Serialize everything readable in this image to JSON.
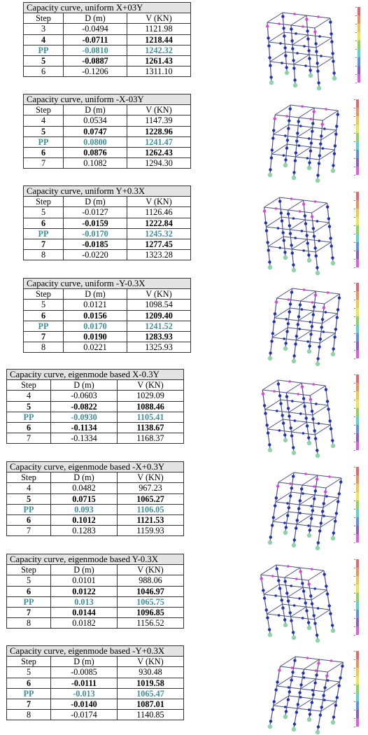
{
  "columns": {
    "step": "Step",
    "d": "D (m)",
    "v": "V (KN)"
  },
  "colors": {
    "pp": "#3e8f9a",
    "title_bg": "#e4e4e4",
    "frame": "#4a4e8c",
    "joint_blue": "#1b2fb8",
    "joint_magenta": "#e040e0",
    "support": "#8fd4a8"
  },
  "scale_colors": [
    "#e8656b",
    "#f0905a",
    "#f3c54b",
    "#e8e84a",
    "#8fd45a",
    "#5ad4c8",
    "#5a8ef0",
    "#8a5ad4",
    "#e25ae0"
  ],
  "tables": [
    {
      "title": "Capacity curve, uniform X+03Y",
      "rows": [
        {
          "step": "3",
          "d": "-0.0494",
          "v": "1121.98",
          "style": "normal"
        },
        {
          "step": "4",
          "d": "-0.0711",
          "v": "1218.44",
          "style": "bold"
        },
        {
          "step": "PP",
          "d": "-0.0810",
          "v": "1242.32",
          "style": "pp"
        },
        {
          "step": "5",
          "d": "-0.0887",
          "v": "1261.43",
          "style": "bold"
        },
        {
          "step": "6",
          "d": "-0.1206",
          "v": "1311.10",
          "style": "normal"
        }
      ]
    },
    {
      "title": "Capacity curve, uniform -X-03Y",
      "rows": [
        {
          "step": "4",
          "d": "0.0534",
          "v": "1147.39",
          "style": "normal"
        },
        {
          "step": "5",
          "d": "0.0747",
          "v": "1228.96",
          "style": "bold"
        },
        {
          "step": "PP",
          "d": "0.0800",
          "v": "1241.47",
          "style": "pp"
        },
        {
          "step": "6",
          "d": "0.0876",
          "v": "1262.43",
          "style": "bold"
        },
        {
          "step": "7",
          "d": "0.1082",
          "v": "1294.30",
          "style": "normal"
        }
      ]
    },
    {
      "title": "Capacity curve, uniform Y+0.3X",
      "rows": [
        {
          "step": "5",
          "d": "-0.0127",
          "v": "1126.46",
          "style": "normal"
        },
        {
          "step": "6",
          "d": "-0.0159",
          "v": "1222.84",
          "style": "bold"
        },
        {
          "step": "PP",
          "d": "-0.0170",
          "v": "1245.32",
          "style": "pp"
        },
        {
          "step": "7",
          "d": "-0.0185",
          "v": "1277.45",
          "style": "bold"
        },
        {
          "step": "8",
          "d": "-0.0220",
          "v": "1323.28",
          "style": "normal"
        }
      ]
    },
    {
      "title": "Capacity curve, uniform -Y-0.3X",
      "rows": [
        {
          "step": "5",
          "d": "0.0121",
          "v": "1098.54",
          "style": "normal"
        },
        {
          "step": "6",
          "d": "0.0156",
          "v": "1209.40",
          "style": "bold"
        },
        {
          "step": "PP",
          "d": "0.0170",
          "v": "1241.52",
          "style": "pp"
        },
        {
          "step": "7",
          "d": "0.0190",
          "v": "1283.93",
          "style": "bold"
        },
        {
          "step": "8",
          "d": "0.0221",
          "v": "1325.93",
          "style": "normal"
        }
      ]
    },
    {
      "title": "Capacity curve, eigenmode based X-0.3Y",
      "rows": [
        {
          "step": "4",
          "d": "-0.0603",
          "v": "1029.09",
          "style": "normal"
        },
        {
          "step": "5",
          "d": "-0.0822",
          "v": "1088.46",
          "style": "bold"
        },
        {
          "step": "PP",
          "d": "-0.0930",
          "v": "1105.41",
          "style": "pp"
        },
        {
          "step": "6",
          "d": "-0.1134",
          "v": "1138.67",
          "style": "bold"
        },
        {
          "step": "7",
          "d": "-0.1334",
          "v": "1168.37",
          "style": "normal"
        }
      ]
    },
    {
      "title": "Capacity curve, eigenmode based -X+0.3Y",
      "rows": [
        {
          "step": "4",
          "d": "0.0482",
          "v": "967.23",
          "style": "normal"
        },
        {
          "step": "5",
          "d": "0.0715",
          "v": "1065.27",
          "style": "bold"
        },
        {
          "step": "PP",
          "d": "0.093",
          "v": "1106.05",
          "style": "pp"
        },
        {
          "step": "6",
          "d": "0.1012",
          "v": "1121.53",
          "style": "bold"
        },
        {
          "step": "7",
          "d": "0.1283",
          "v": "1159.93",
          "style": "normal"
        }
      ]
    },
    {
      "title": "Capacity curve, eigenmode based Y-0.3X",
      "rows": [
        {
          "step": "5",
          "d": "0.0101",
          "v": "988.06",
          "style": "normal"
        },
        {
          "step": "6",
          "d": "0.0122",
          "v": "1046.97",
          "style": "bold"
        },
        {
          "step": "PP",
          "d": "0.013",
          "v": "1065.75",
          "style": "pp"
        },
        {
          "step": "7",
          "d": "0.0144",
          "v": "1096.85",
          "style": "bold"
        },
        {
          "step": "8",
          "d": "0.0182",
          "v": "1156.52",
          "style": "normal"
        }
      ]
    },
    {
      "title": "Capacity curve, eigenmode based -Y+0.3X",
      "rows": [
        {
          "step": "5",
          "d": "-0.0085",
          "v": "930.48",
          "style": "normal"
        },
        {
          "step": "6",
          "d": "-0.0111",
          "v": "1019.58",
          "style": "bold"
        },
        {
          "step": "PP",
          "d": "-0.013",
          "v": "1065.47",
          "style": "pp"
        },
        {
          "step": "7",
          "d": "-0.0140",
          "v": "1087.01",
          "style": "bold"
        },
        {
          "step": "8",
          "d": "-0.0174",
          "v": "1140.85",
          "style": "normal"
        }
      ]
    }
  ]
}
